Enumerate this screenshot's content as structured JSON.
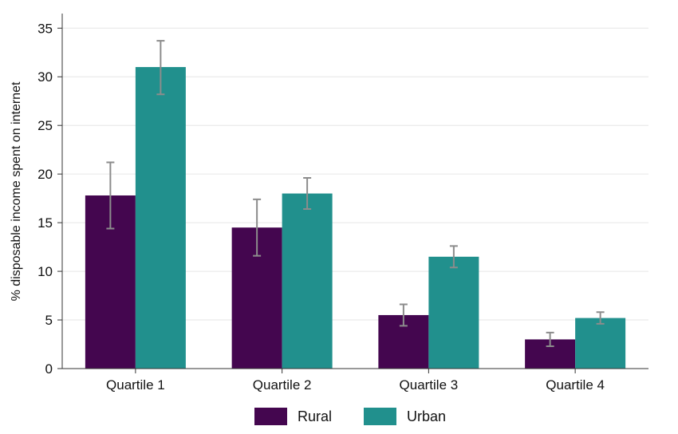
{
  "chart_data": {
    "type": "bar",
    "categories": [
      "Quartile 1",
      "Quartile 2",
      "Quartile 3",
      "Quartile 4"
    ],
    "series": [
      {
        "name": "Rural",
        "color": "#44064f",
        "values": [
          17.8,
          14.5,
          5.5,
          3.0
        ],
        "error_low": [
          14.4,
          11.6,
          4.4,
          2.3
        ],
        "error_high": [
          21.2,
          17.4,
          6.6,
          3.7
        ]
      },
      {
        "name": "Urban",
        "color": "#21908d",
        "values": [
          31.0,
          18.0,
          11.5,
          5.2
        ],
        "error_low": [
          28.2,
          16.4,
          10.4,
          4.6
        ],
        "error_high": [
          33.7,
          19.6,
          12.6,
          5.8
        ]
      }
    ],
    "ylabel": "% disposable income spent on internet",
    "ylim": [
      0,
      36.5
    ],
    "yticks": [
      0,
      5,
      10,
      15,
      20,
      25,
      30,
      35
    ],
    "grid": true,
    "legend_position": "bottom"
  }
}
